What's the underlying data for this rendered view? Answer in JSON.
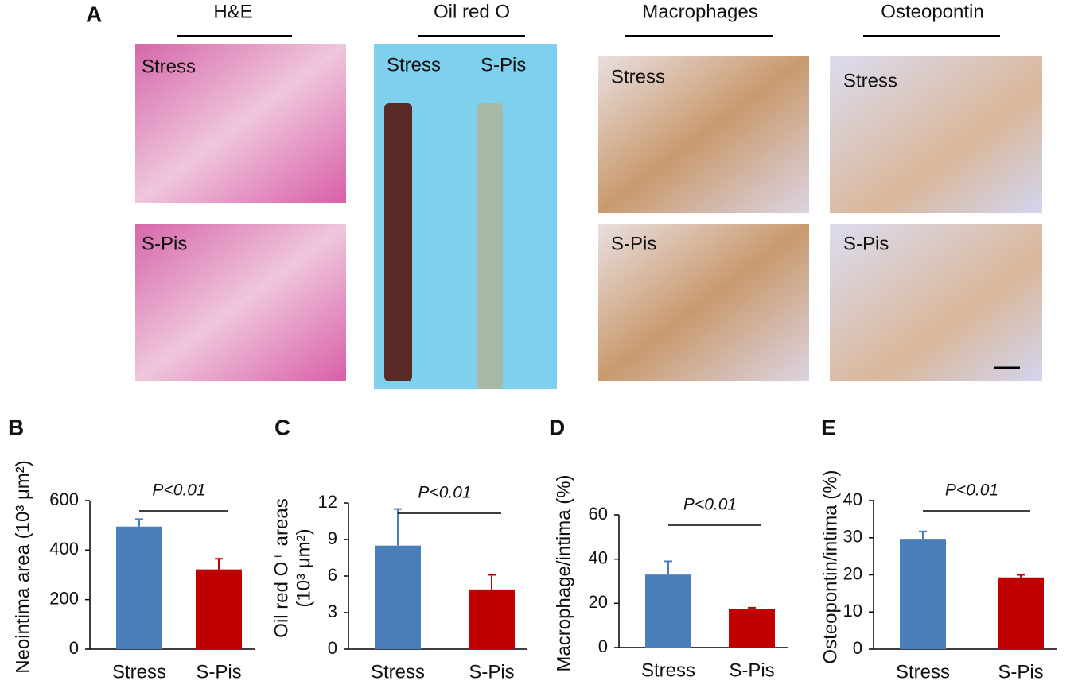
{
  "panel_a": {
    "letter": "A",
    "columns": [
      {
        "title": "H&E",
        "labels": [
          "Stress",
          "S-Pis"
        ]
      },
      {
        "title": "Oil red O",
        "labels": [
          "Stress",
          "S-Pis"
        ]
      },
      {
        "title": "Macrophages",
        "labels": [
          "Stress",
          "S-Pis"
        ]
      },
      {
        "title": "Osteopontin",
        "labels": [
          "Stress",
          "S-Pis"
        ]
      }
    ]
  },
  "chart_data": [
    {
      "type": "bar",
      "panel": "B",
      "ylabel": [
        "Neointima area (10³ μm²)"
      ],
      "annotation": "P<0.01",
      "categories": [
        "Stress",
        "S-Pis"
      ],
      "values": [
        495,
        322
      ],
      "errors": [
        30,
        43
      ],
      "colors": [
        "#4a7ebb",
        "#c00000"
      ],
      "ylim": [
        0,
        600
      ],
      "yticks": [
        0,
        200,
        400,
        600
      ]
    },
    {
      "type": "bar",
      "panel": "C",
      "ylabel": [
        "Oil red O⁺ areas",
        "(10³ μm²)"
      ],
      "annotation": "P<0.01",
      "categories": [
        "Stress",
        "S-Pis"
      ],
      "values": [
        8.5,
        4.9
      ],
      "errors": [
        3.0,
        1.2
      ],
      "colors": [
        "#4a7ebb",
        "#c00000"
      ],
      "ylim": [
        0,
        12
      ],
      "yticks": [
        0,
        3,
        6,
        9,
        12
      ]
    },
    {
      "type": "bar",
      "panel": "D",
      "ylabel": [
        "Macrophage/intima (%)"
      ],
      "annotation": "P<0.01",
      "categories": [
        "Stress",
        "S-Pis"
      ],
      "values": [
        33,
        17.5
      ],
      "errors": [
        6,
        0.5
      ],
      "colors": [
        "#4a7ebb",
        "#c00000"
      ],
      "ylim": [
        0,
        60
      ],
      "yticks": [
        0,
        20,
        40,
        60
      ]
    },
    {
      "type": "bar",
      "panel": "E",
      "ylabel": [
        "Osteopontin/intima (%)"
      ],
      "annotation": "P<0.01",
      "categories": [
        "Stress",
        "S-Pis"
      ],
      "values": [
        29.7,
        19.3
      ],
      "errors": [
        2,
        0.7
      ],
      "colors": [
        "#4a7ebb",
        "#c00000"
      ],
      "ylim": [
        0,
        40
      ],
      "yticks": [
        0,
        10,
        20,
        30,
        40
      ]
    }
  ]
}
